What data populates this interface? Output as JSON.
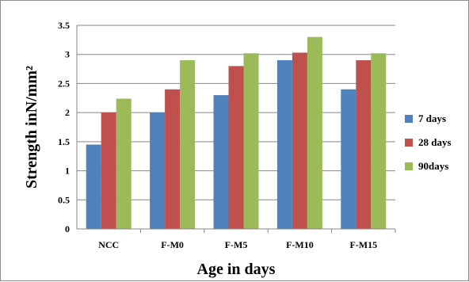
{
  "chart_data": {
    "type": "bar",
    "categories": [
      "NCC",
      "F-M0",
      "F-M5",
      "F-M10",
      "F-M15"
    ],
    "series": [
      {
        "name": "7 days",
        "color": "#4F81BD",
        "values": [
          1.45,
          2.0,
          2.3,
          2.9,
          2.4
        ]
      },
      {
        "name": "28 days",
        "color": "#C0504D",
        "values": [
          2.0,
          2.4,
          2.8,
          3.03,
          2.9
        ]
      },
      {
        "name": "90days",
        "color": "#9BBB59",
        "values": [
          2.24,
          2.9,
          3.02,
          3.3,
          3.02
        ]
      }
    ],
    "yticks": [
      "0",
      "0.5",
      "1",
      "1.5",
      "2",
      "2.5",
      "3",
      "3.5"
    ],
    "ylim": [
      0,
      3.5
    ],
    "xlabel": "Age in days",
    "ylabel": "Strength inN/mm²",
    "grid": true,
    "legend_position": "right"
  }
}
